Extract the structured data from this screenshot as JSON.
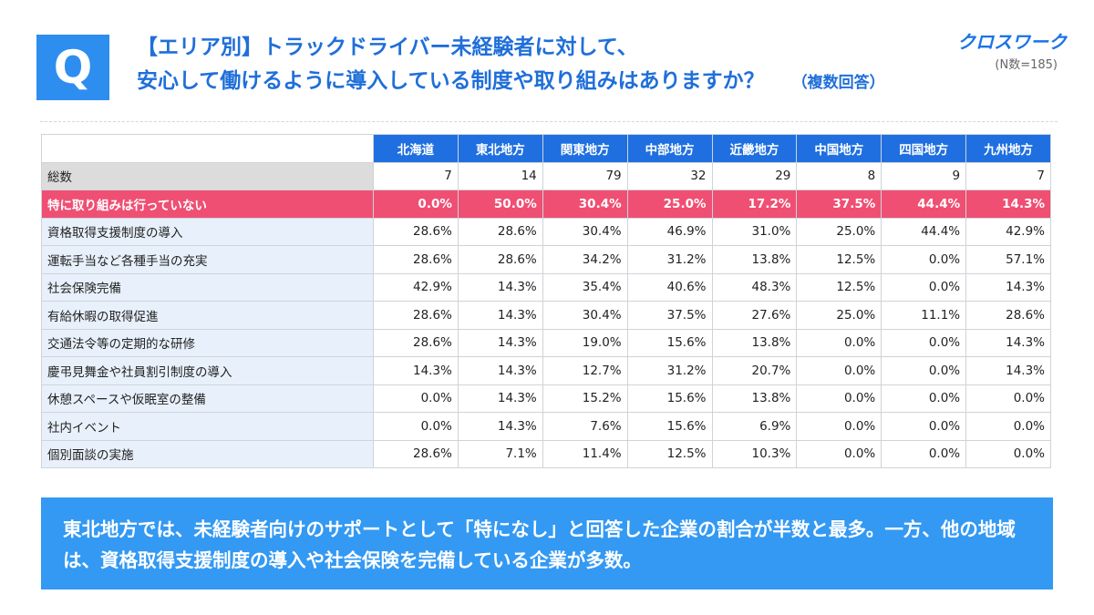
{
  "header": {
    "badge": "Q",
    "title_line1": "【エリア別】トラックドライバー未経験者に対して、",
    "title_line2": "安心して働けるように導入している制度や取り組みはありますか？",
    "title_note": "（複数回答）",
    "brand": "クロスワーク",
    "sample_size": "(N数=185)"
  },
  "chart_data": {
    "type": "table",
    "columns": [
      "北海道",
      "東北地方",
      "関東地方",
      "中部地方",
      "近畿地方",
      "中国地方",
      "四国地方",
      "九州地方"
    ],
    "rows": [
      {
        "label": "総数",
        "values": [
          "7",
          "14",
          "79",
          "32",
          "29",
          "8",
          "9",
          "7"
        ]
      },
      {
        "label": "特に取り組みは行っていない",
        "values": [
          "0.0%",
          "50.0%",
          "30.4%",
          "25.0%",
          "17.2%",
          "37.5%",
          "44.4%",
          "14.3%"
        ]
      },
      {
        "label": "資格取得支援制度の導入",
        "values": [
          "28.6%",
          "28.6%",
          "30.4%",
          "46.9%",
          "31.0%",
          "25.0%",
          "44.4%",
          "42.9%"
        ]
      },
      {
        "label": "運転手当など各種手当の充実",
        "values": [
          "28.6%",
          "28.6%",
          "34.2%",
          "31.2%",
          "13.8%",
          "12.5%",
          "0.0%",
          "57.1%"
        ]
      },
      {
        "label": "社会保険完備",
        "values": [
          "42.9%",
          "14.3%",
          "35.4%",
          "40.6%",
          "48.3%",
          "12.5%",
          "0.0%",
          "14.3%"
        ]
      },
      {
        "label": "有給休暇の取得促進",
        "values": [
          "28.6%",
          "14.3%",
          "30.4%",
          "37.5%",
          "27.6%",
          "25.0%",
          "11.1%",
          "28.6%"
        ]
      },
      {
        "label": "交通法令等の定期的な研修",
        "values": [
          "28.6%",
          "14.3%",
          "19.0%",
          "15.6%",
          "13.8%",
          "0.0%",
          "0.0%",
          "14.3%"
        ]
      },
      {
        "label": "慶弔見舞金や社員割引制度の導入",
        "values": [
          "14.3%",
          "14.3%",
          "12.7%",
          "31.2%",
          "20.7%",
          "0.0%",
          "0.0%",
          "14.3%"
        ]
      },
      {
        "label": "休憩スペースや仮眠室の整備",
        "values": [
          "0.0%",
          "14.3%",
          "15.2%",
          "15.6%",
          "13.8%",
          "0.0%",
          "0.0%",
          "0.0%"
        ]
      },
      {
        "label": "社内イベント",
        "values": [
          "0.0%",
          "14.3%",
          "7.6%",
          "15.6%",
          "6.9%",
          "0.0%",
          "0.0%",
          "0.0%"
        ]
      },
      {
        "label": "個別面談の実施",
        "values": [
          "28.6%",
          "7.1%",
          "11.4%",
          "12.5%",
          "10.3%",
          "0.0%",
          "0.0%",
          "0.0%"
        ]
      }
    ],
    "highlight_row": 1,
    "colors": {
      "header": "#1f6fe0",
      "highlight": "#ef4f73",
      "label_bg": "#e8f1fb",
      "total_bg": "#dcdcdc"
    }
  },
  "callout": {
    "text": "東北地方では、未経験者向けのサポートとして「特になし」と回答した企業の割合が半数と最多。一方、他の地域は、資格取得支援制度の導入や社会保険を完備している企業が多数。"
  }
}
